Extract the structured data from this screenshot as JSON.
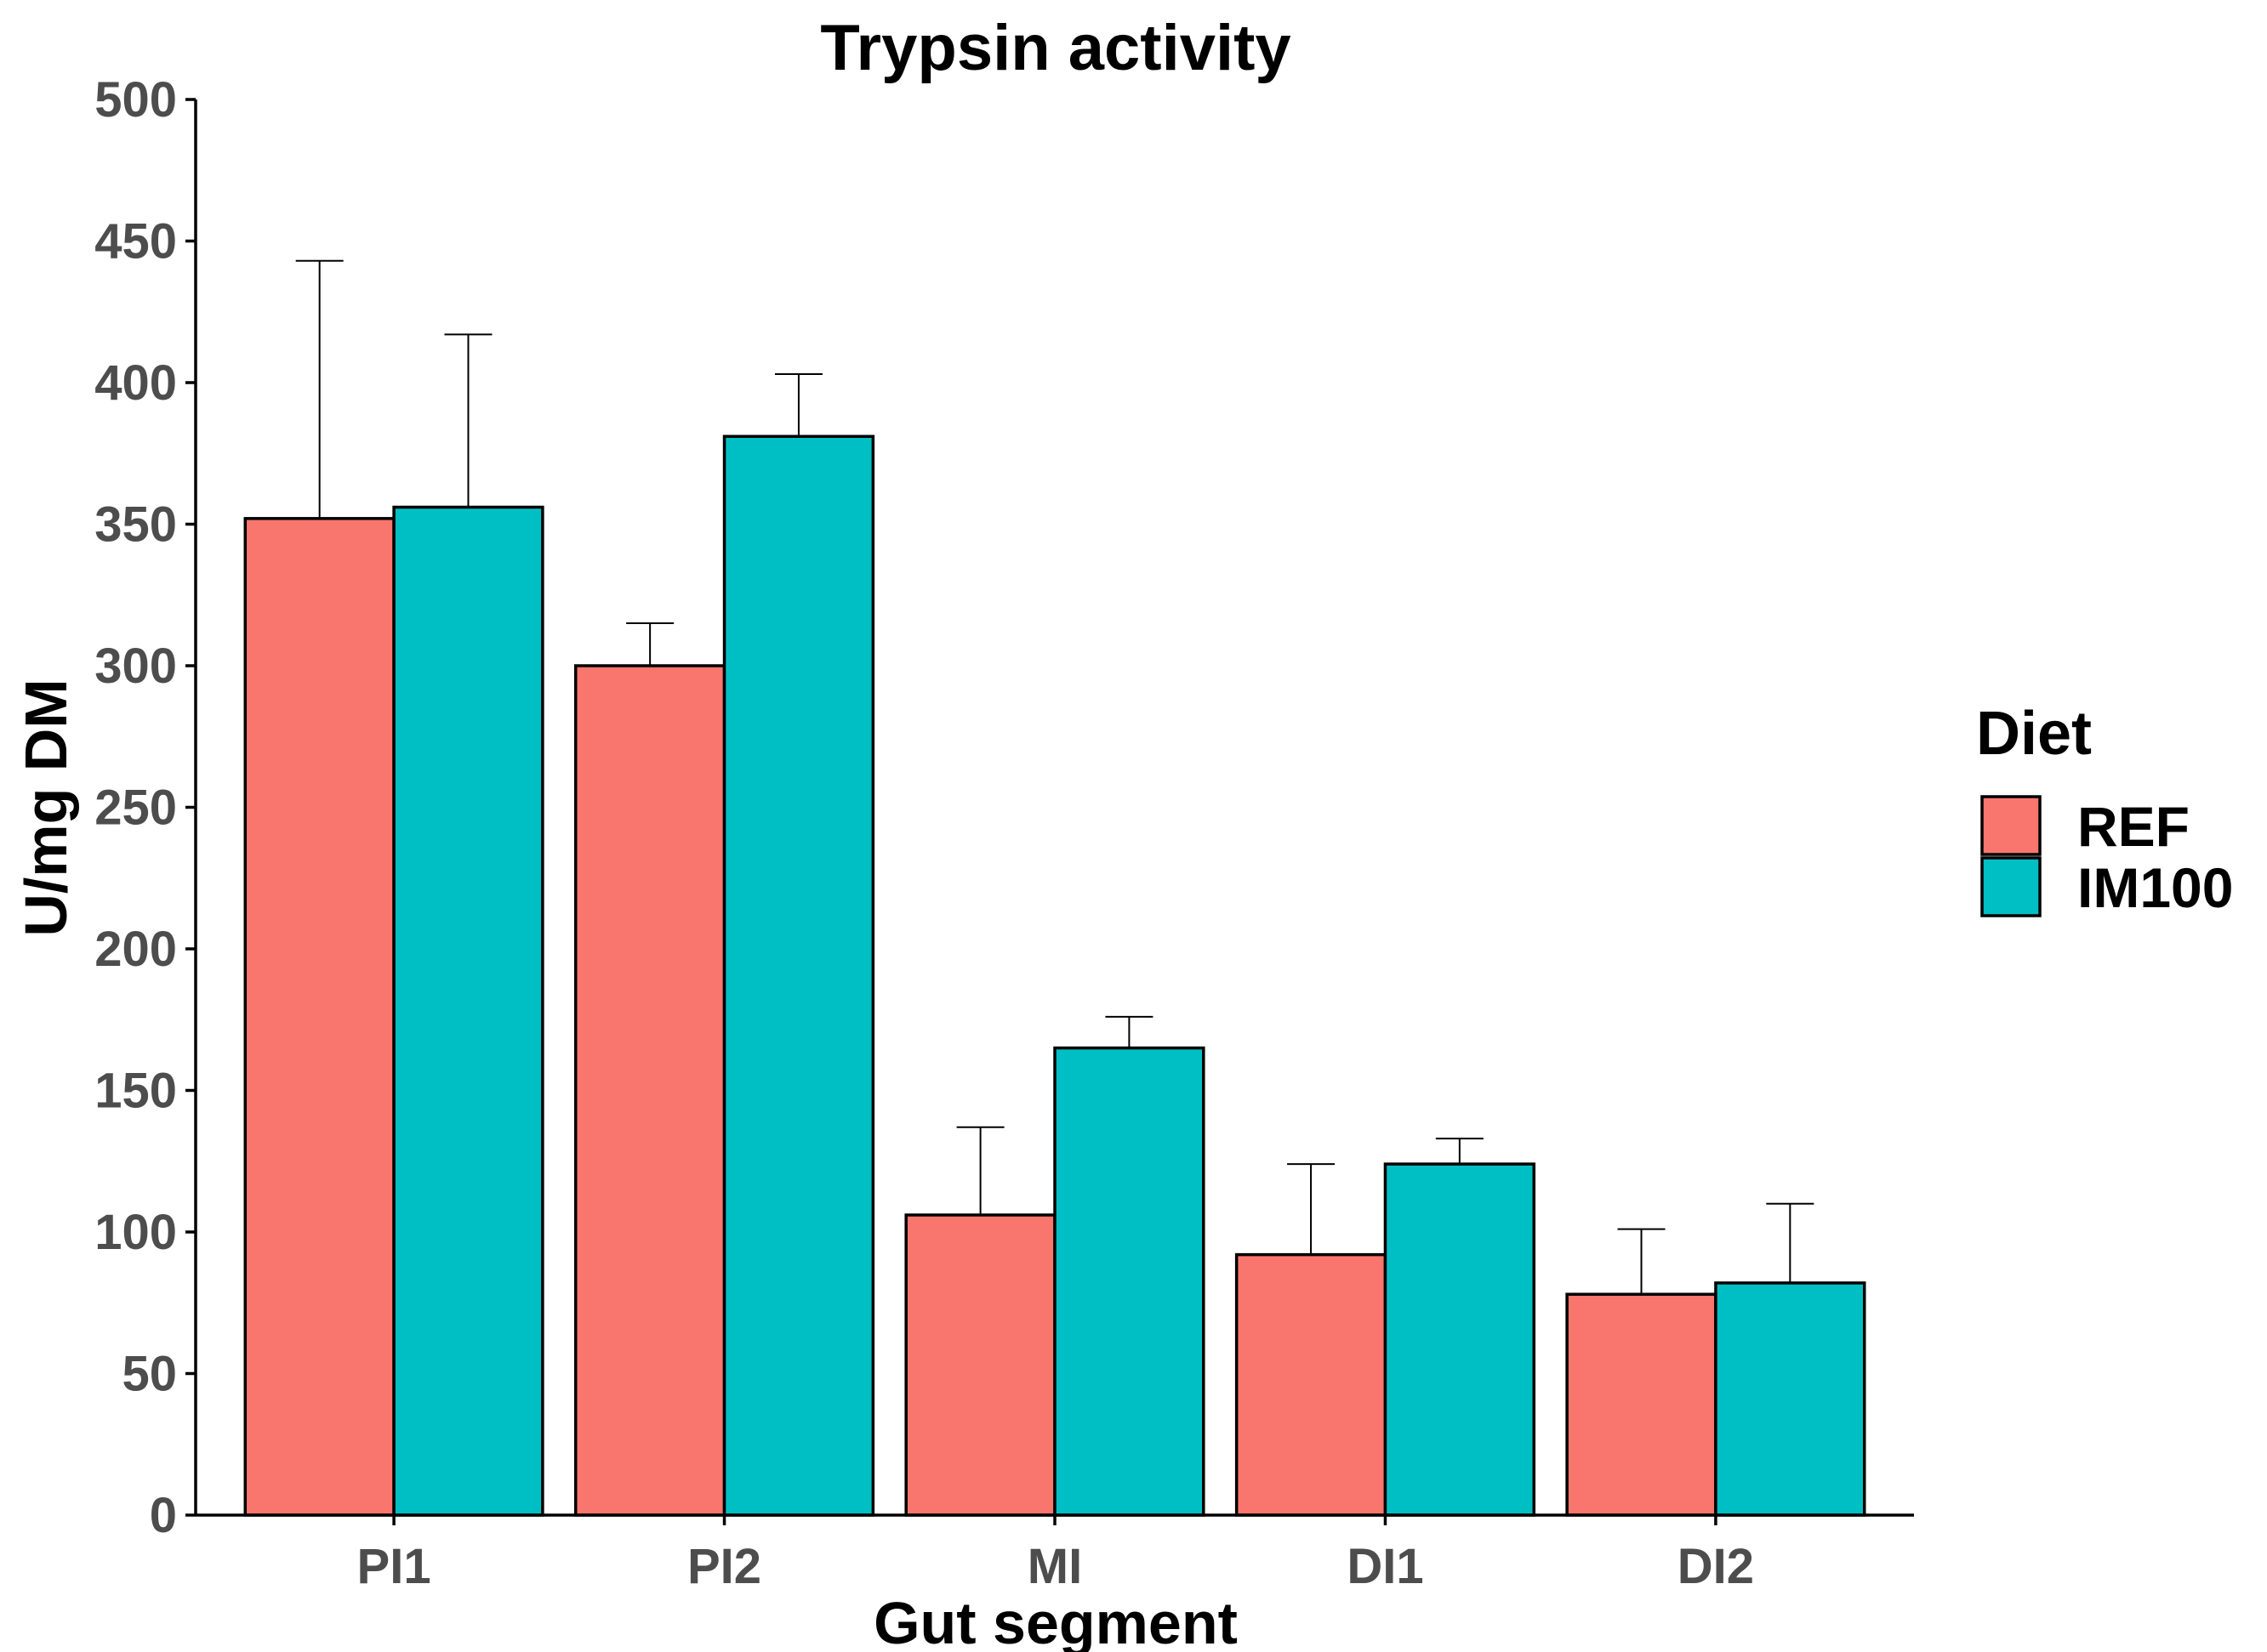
{
  "chart_data": {
    "type": "bar",
    "title": "Trypsin activity",
    "xlabel": "Gut segment",
    "ylabel": "U/mg DM",
    "categories": [
      "PI1",
      "PI2",
      "MI",
      "DI1",
      "DI2"
    ],
    "ylim": [
      0,
      500
    ],
    "yticks": [
      0,
      50,
      100,
      150,
      200,
      250,
      300,
      350,
      400,
      450,
      500
    ],
    "grid": false,
    "legend": {
      "title": "Diet",
      "placement": "right"
    },
    "series": [
      {
        "name": "REF",
        "color": "#F8766D",
        "values": [
          352,
          300,
          106,
          92,
          78
        ],
        "error_upper": [
          443,
          315,
          137,
          124,
          101
        ]
      },
      {
        "name": "IM100",
        "color": "#00BFC4",
        "values": [
          356,
          381,
          165,
          124,
          82
        ],
        "error_upper": [
          417,
          403,
          176,
          133,
          110
        ]
      }
    ]
  }
}
